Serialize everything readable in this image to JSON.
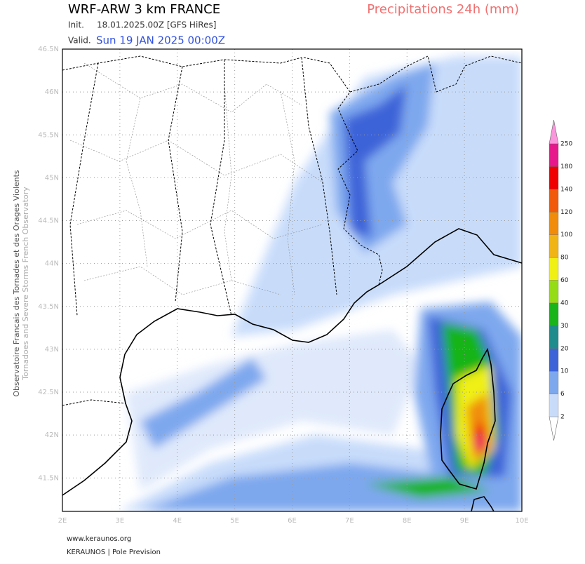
{
  "header": {
    "title": "WRF-ARW 3 km FRANCE",
    "field": "Precipitations 24h (mm)",
    "init_label": "Init.",
    "init": "18.01.2025.00Z [GFS HiRes]",
    "valid_label": "Valid.",
    "valid": "Sun 19 JAN 2025 00:00Z"
  },
  "map": {
    "xlim": [
      2,
      10
    ],
    "ylim": [
      41.11,
      46.5
    ],
    "xticks": [
      {
        "value": 2,
        "label": "2E"
      },
      {
        "value": 3,
        "label": "3E"
      },
      {
        "value": 4,
        "label": "4E"
      },
      {
        "value": 5,
        "label": "5E"
      },
      {
        "value": 6,
        "label": "6E"
      },
      {
        "value": 7,
        "label": "7E"
      },
      {
        "value": 8,
        "label": "8E"
      },
      {
        "value": 9,
        "label": "9E"
      },
      {
        "value": 10,
        "label": "10E"
      }
    ],
    "yticks": [
      {
        "value": 46.5,
        "label": "46.5N"
      },
      {
        "value": 46,
        "label": "46N"
      },
      {
        "value": 45.5,
        "label": "45.5N"
      },
      {
        "value": 45,
        "label": "45N"
      },
      {
        "value": 44.5,
        "label": "44.5N"
      },
      {
        "value": 44,
        "label": "44N"
      },
      {
        "value": 43.5,
        "label": "43.5N"
      },
      {
        "value": 43,
        "label": "43N"
      },
      {
        "value": 42.5,
        "label": "42.5N"
      },
      {
        "value": 42,
        "label": "42N"
      },
      {
        "value": 41.5,
        "label": "41.5N"
      }
    ],
    "grid": true
  },
  "colorbar": {
    "levels": [
      2,
      6,
      10,
      20,
      30,
      40,
      60,
      80,
      100,
      120,
      140,
      180,
      250
    ],
    "colors": [
      "#ffffff",
      "#c8dcfa",
      "#7ea8ee",
      "#3c64d8",
      "#1e8c8c",
      "#19b419",
      "#96dc14",
      "#f0f014",
      "#f0b414",
      "#f08c0a",
      "#f05a0a",
      "#f00000",
      "#e6188c",
      "#fa96dc"
    ]
  },
  "side": {
    "line1": "Observatoire Francais des Tornades et des Orages Violents",
    "line2": "Tornadoes and Severe Storms French Observatory"
  },
  "footer": {
    "site": "www.keraunos.org",
    "org": "KERAUNOS | Pole Prevision"
  }
}
